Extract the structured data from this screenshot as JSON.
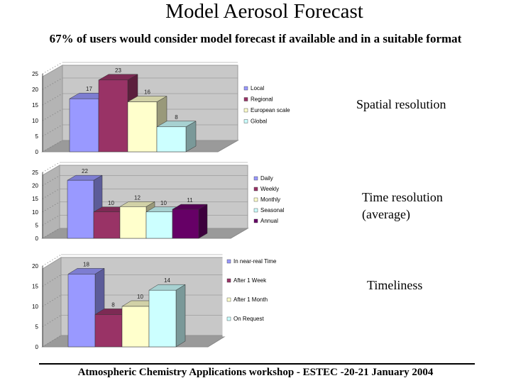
{
  "title": "Model Aerosol Forecast",
  "subtitle": "67% of users would consider model forecast if available and in a suitable format",
  "footer": "Atmospheric Chemistry Applications workshop - ESTEC -20-21 January 2004",
  "chart_data": [
    {
      "type": "bar",
      "caption": "Spatial resolution",
      "categories": [
        "Local",
        "Regional",
        "European scale",
        "Global"
      ],
      "values": [
        17,
        23,
        16,
        8
      ],
      "colors": [
        "#9999ff",
        "#993366",
        "#ffffcc",
        "#ccffff"
      ],
      "ylim": [
        0,
        25
      ],
      "yticks": [
        0,
        5,
        10,
        15,
        20,
        25
      ]
    },
    {
      "type": "bar",
      "caption": "Time resolution (average)",
      "categories": [
        "Daily",
        "Weekly",
        "Monthly",
        "Seasonal",
        "Annual"
      ],
      "values": [
        22,
        10,
        12,
        10,
        11
      ],
      "colors": [
        "#9999ff",
        "#993366",
        "#ffffcc",
        "#ccffff",
        "#660066"
      ],
      "ylim": [
        0,
        25
      ],
      "yticks": [
        0,
        5,
        10,
        15,
        20,
        25
      ]
    },
    {
      "type": "bar",
      "caption": "Timeliness",
      "categories": [
        "In near-real Time",
        "After 1 Week",
        "After 1 Month",
        "On Request"
      ],
      "values": [
        18,
        8,
        10,
        14
      ],
      "colors": [
        "#9999ff",
        "#993366",
        "#ffffcc",
        "#ccffff"
      ],
      "ylim": [
        0,
        20
      ],
      "yticks": [
        0,
        5,
        10,
        15,
        20
      ]
    }
  ]
}
